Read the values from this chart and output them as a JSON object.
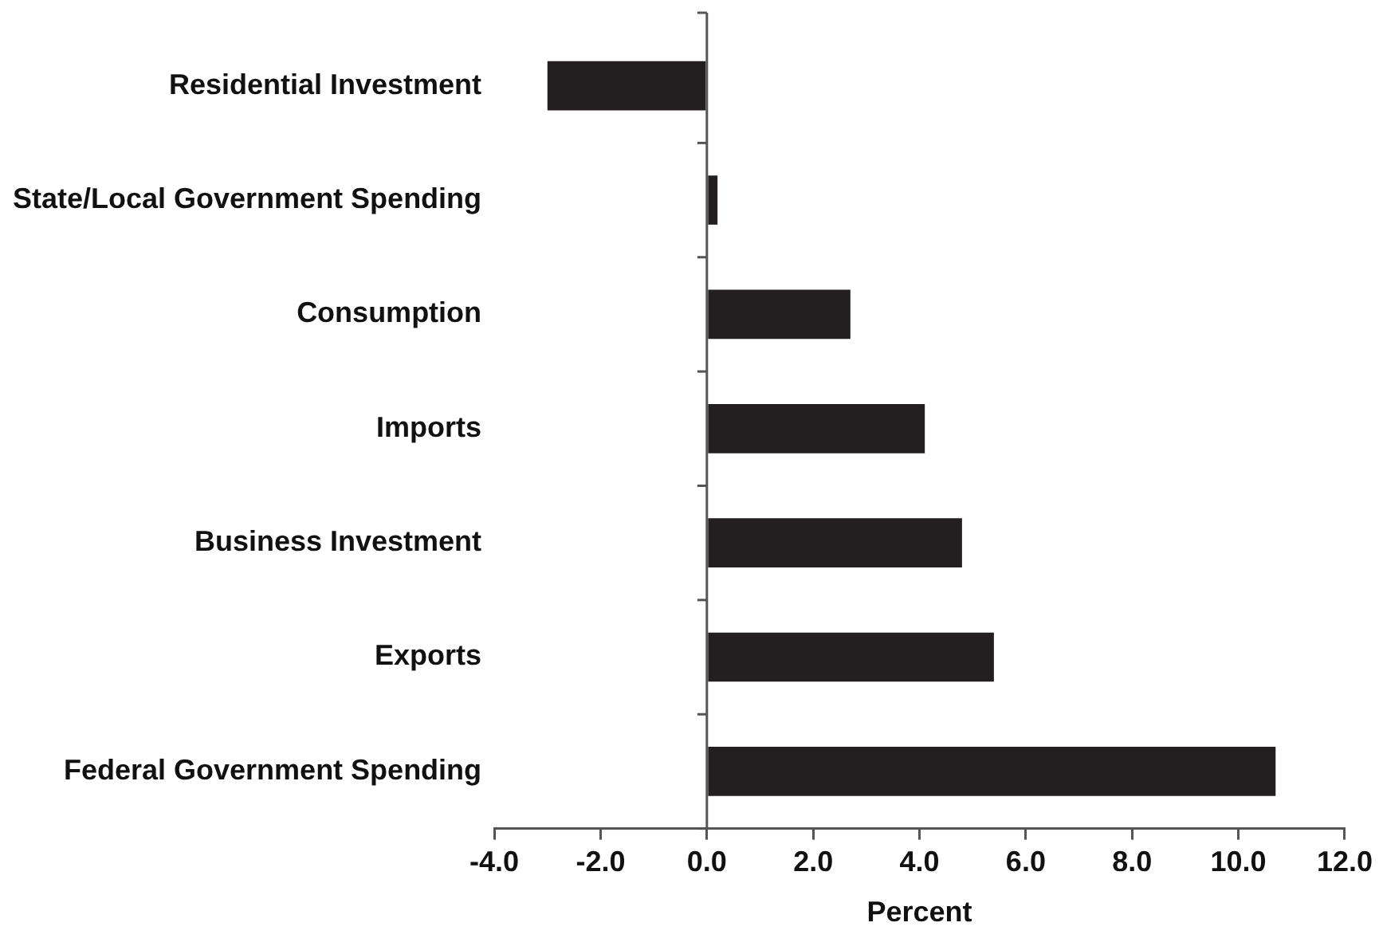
{
  "chart_data": {
    "type": "bar",
    "orientation": "horizontal",
    "xlabel": "Percent",
    "categories": [
      "Residential Investment",
      "State/Local Government Spending",
      "Consumption",
      "Imports",
      "Business Investment",
      "Exports",
      "Federal Government Spending"
    ],
    "values": [
      -3.0,
      0.2,
      2.7,
      4.1,
      4.8,
      5.4,
      10.7
    ],
    "color": "#231f20",
    "xlim": [
      -4,
      12
    ],
    "xticks": [
      {
        "value": -4,
        "label": "-4.0"
      },
      {
        "value": -2,
        "label": "-2.0"
      },
      {
        "value": 0,
        "label": "0.0"
      },
      {
        "value": 2,
        "label": "2.0"
      },
      {
        "value": 4,
        "label": "4.0"
      },
      {
        "value": 6,
        "label": "6.0"
      },
      {
        "value": 8,
        "label": "8.0"
      },
      {
        "value": 10,
        "label": "10.0"
      },
      {
        "value": 12,
        "label": "12.0"
      }
    ],
    "legend": false
  }
}
